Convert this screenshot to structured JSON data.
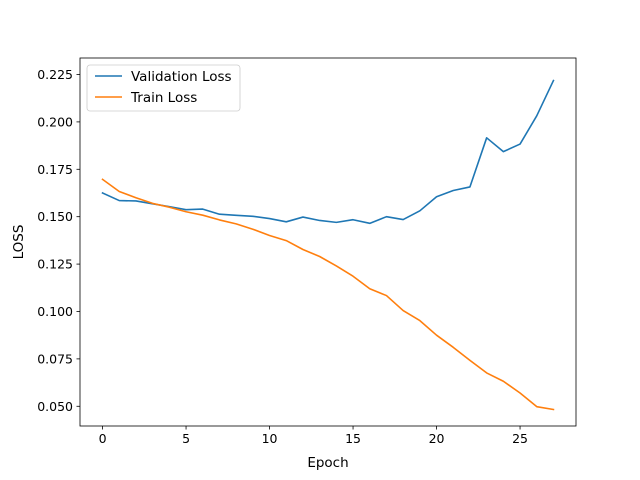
{
  "chart_data": {
    "type": "line",
    "title": "",
    "xlabel": "Epoch",
    "ylabel": "LOSS",
    "xlim": [
      -1.35,
      28.35
    ],
    "ylim": [
      0.0396,
      0.2337
    ],
    "xticks": [
      0,
      5,
      10,
      15,
      20,
      25
    ],
    "xtick_labels": [
      "0",
      "5",
      "10",
      "15",
      "20",
      "25"
    ],
    "yticks": [
      0.05,
      0.075,
      0.1,
      0.125,
      0.15,
      0.175,
      0.2,
      0.225
    ],
    "ytick_labels": [
      "0.050",
      "0.075",
      "0.100",
      "0.125",
      "0.150",
      "0.175",
      "0.200",
      "0.225"
    ],
    "grid": false,
    "legend_position": "top-left",
    "x": [
      0,
      1,
      2,
      3,
      4,
      5,
      6,
      7,
      8,
      9,
      10,
      11,
      12,
      13,
      14,
      15,
      16,
      17,
      18,
      19,
      20,
      21,
      22,
      23,
      24,
      25,
      26,
      27
    ],
    "series": [
      {
        "name": "Validation Loss",
        "color": "#1f77b4",
        "values": [
          0.1625,
          0.1585,
          0.1583,
          0.1568,
          0.1553,
          0.1537,
          0.154,
          0.1513,
          0.1507,
          0.1502,
          0.149,
          0.1473,
          0.1498,
          0.148,
          0.147,
          0.1484,
          0.1465,
          0.15,
          0.1485,
          0.1531,
          0.1605,
          0.1638,
          0.1657,
          0.1916,
          0.1843,
          0.1883,
          0.2032,
          0.2218
        ]
      },
      {
        "name": "Train Loss",
        "color": "#ff7f0e",
        "values": [
          0.1697,
          0.1633,
          0.16,
          0.157,
          0.155,
          0.1526,
          0.1508,
          0.1483,
          0.1462,
          0.1434,
          0.1401,
          0.1374,
          0.1327,
          0.129,
          0.124,
          0.1186,
          0.112,
          0.1084,
          0.1005,
          0.0952,
          0.0875,
          0.0811,
          0.0742,
          0.0676,
          0.0632,
          0.057,
          0.0498,
          0.0483
        ]
      }
    ]
  }
}
